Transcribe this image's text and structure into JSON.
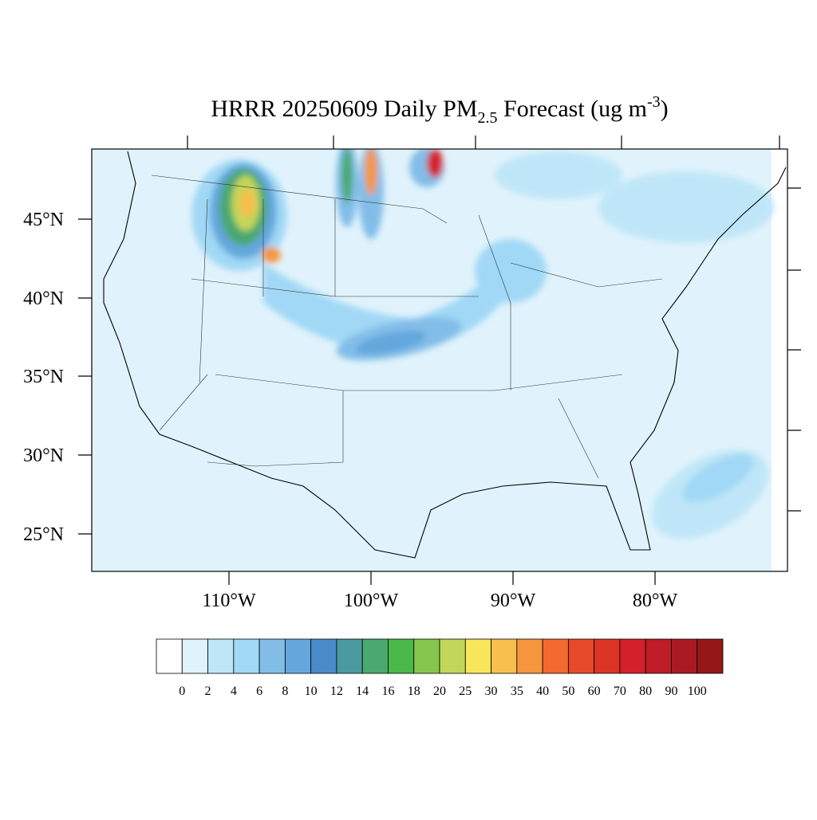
{
  "title": {
    "main": "HRRR 20250609 Daily PM",
    "subscript": "2.5",
    "middle": " Forecast (ug m",
    "superscript": "-3",
    "end": ")"
  },
  "latitude_labels": [
    "45°N",
    "40°N",
    "35°N",
    "30°N",
    "25°N"
  ],
  "longitude_labels": [
    "110°W",
    "100°W",
    "90°W",
    "80°W"
  ],
  "colorbar": {
    "levels": [
      0,
      2,
      4,
      6,
      8,
      10,
      12,
      14,
      16,
      18,
      20,
      25,
      30,
      35,
      40,
      50,
      60,
      70,
      80,
      90,
      100
    ],
    "colors": [
      "#ffffff",
      "#e0f3fc",
      "#bfe6f8",
      "#a0d8f5",
      "#82bde8",
      "#64a7dc",
      "#4a8bc9",
      "#4a9aa0",
      "#4aa870",
      "#4ab84a",
      "#86c64e",
      "#c2d65a",
      "#f6e65a",
      "#f6bf4e",
      "#f6963e",
      "#f26a2e",
      "#e64a2a",
      "#dc3426",
      "#d42029",
      "#be1c26",
      "#aa1a22",
      "#961717"
    ]
  }
}
